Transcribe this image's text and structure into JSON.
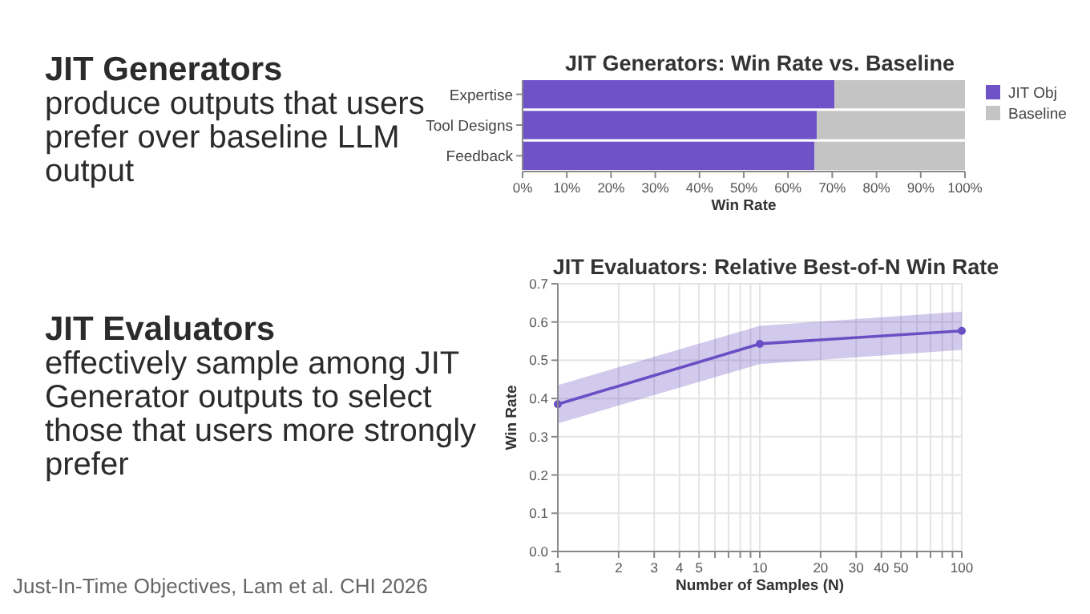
{
  "chart_data": [
    {
      "type": "other",
      "title": "JIT Generators",
      "subtitle": "produce outputs that users prefer over baseline LLM output"
    },
    {
      "type": "bar",
      "orientation": "horizontal",
      "stacked": true,
      "title": "JIT Generators: Win Rate vs. Baseline",
      "xlabel": "Win Rate",
      "categories": [
        "Expertise",
        "Tool Designs",
        "Feedback"
      ],
      "series": [
        {
          "name": "JIT Obj",
          "color": "#7052c8",
          "values": [
            70.5,
            66.5,
            66
          ]
        },
        {
          "name": "Baseline",
          "color": "#c4c4c4",
          "values": [
            29.5,
            33.5,
            34
          ]
        }
      ],
      "xlim": [
        0,
        100
      ],
      "xticks": [
        {
          "value": 0,
          "label": "0%"
        },
        {
          "value": 10,
          "label": "10%"
        },
        {
          "value": 20,
          "label": "20%"
        },
        {
          "value": 30,
          "label": "30%"
        },
        {
          "value": 40,
          "label": "40%"
        },
        {
          "value": 50,
          "label": "50%"
        },
        {
          "value": 60,
          "label": "60%"
        },
        {
          "value": 70,
          "label": "70%"
        },
        {
          "value": 80,
          "label": "80%"
        },
        {
          "value": 90,
          "label": "90%"
        },
        {
          "value": 100,
          "label": "100%"
        }
      ],
      "legend": "right"
    },
    {
      "type": "other",
      "title": "JIT Evaluators",
      "subtitle": "effectively sample among JIT Generator outputs to select those that users more strongly prefer",
      "annotations": [
        "Just-In-Time Objectives, Lam et al. CHI 2026"
      ]
    },
    {
      "type": "line",
      "title": "JIT Evaluators: Relative Best-of-N Win Rate",
      "xlabel": "Number of Samples (N)",
      "ylabel": "Win Rate",
      "log": "x",
      "grid": true,
      "marker": "circle",
      "series": [
        {
          "color": "#6a4fc4",
          "x": [
            1,
            10,
            100
          ],
          "values": [
            0.385,
            0.543,
            0.577
          ],
          "lower": [
            0.335,
            0.49,
            0.527
          ],
          "upper": [
            0.435,
            0.59,
            0.627
          ]
        }
      ],
      "xlim": [
        1,
        100
      ],
      "xticks": [
        1,
        2,
        3,
        4,
        5,
        {
          "value": 6,
          "label": null
        },
        {
          "value": 7,
          "label": null
        },
        {
          "value": 8,
          "label": null
        },
        {
          "value": 9,
          "label": null
        },
        10,
        20,
        30,
        40,
        50,
        {
          "value": 60,
          "label": null
        },
        {
          "value": 70,
          "label": null
        },
        {
          "value": 80,
          "label": null
        },
        {
          "value": 90,
          "label": null
        },
        100
      ],
      "ylim": [
        0,
        0.7
      ],
      "yticks": [
        {
          "value": 0,
          "label": "0.0"
        },
        0.1,
        0.2,
        0.3,
        0.4,
        0.5,
        0.6,
        0.7
      ]
    }
  ]
}
